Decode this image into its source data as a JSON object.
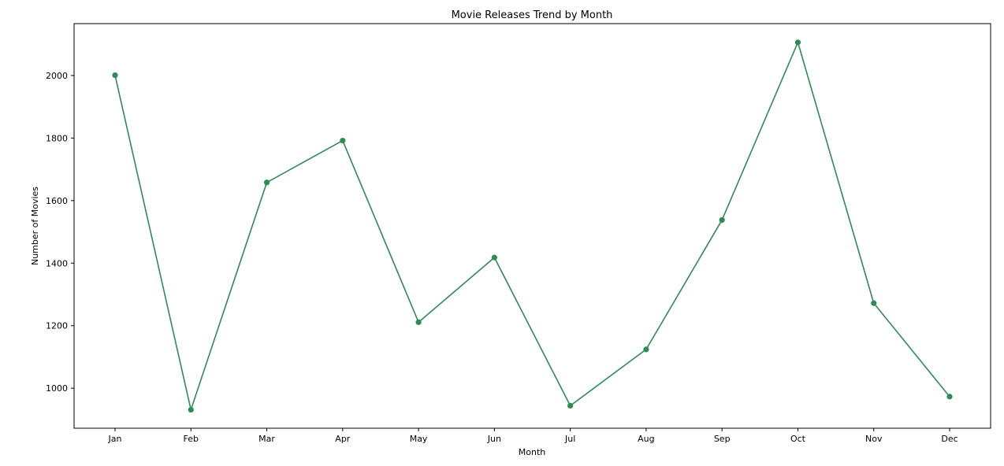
{
  "chart_data": {
    "type": "line",
    "title": "Movie Releases Trend by Month",
    "xlabel": "Month",
    "ylabel": "Number of Movies",
    "categories": [
      "Jan",
      "Feb",
      "Mar",
      "Apr",
      "May",
      "Jun",
      "Jul",
      "Aug",
      "Sep",
      "Oct",
      "Nov",
      "Dec"
    ],
    "series": [
      {
        "values": [
          2001,
          931,
          1658,
          1792,
          1211,
          1418,
          944,
          1124,
          1538,
          2106,
          1272,
          973
        ],
        "color": "#2e8b57",
        "marker": "circle"
      }
    ],
    "ylim": [
      872,
      2166
    ],
    "yticks": [
      1000,
      1200,
      1400,
      1600,
      1800,
      2000
    ],
    "grid": false,
    "legend": "none"
  }
}
